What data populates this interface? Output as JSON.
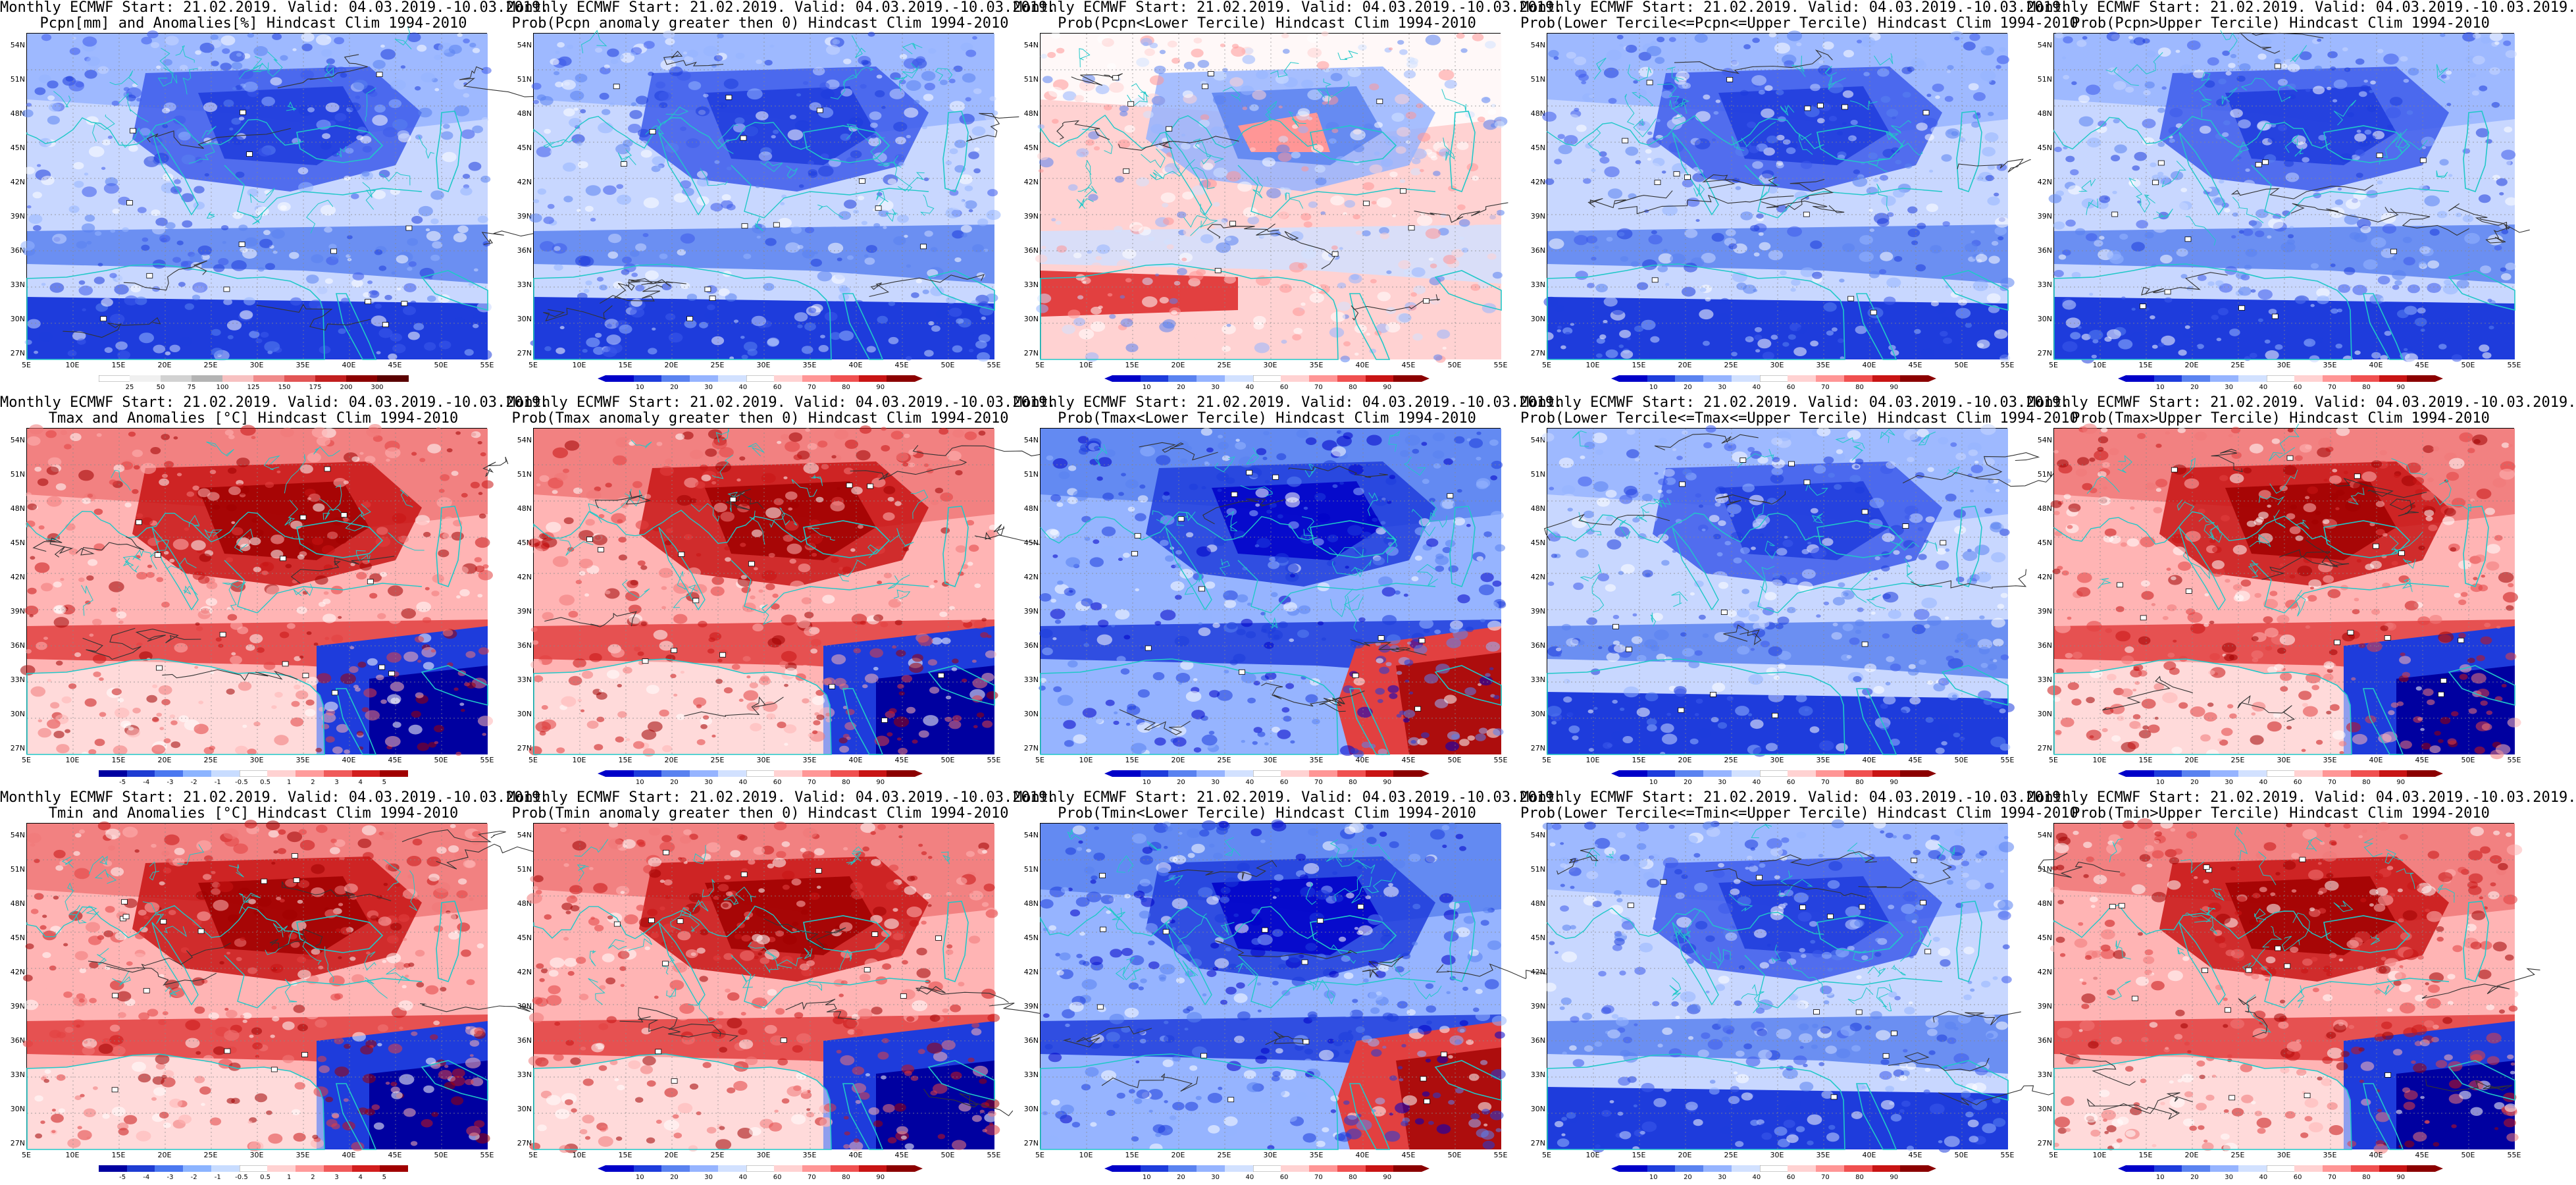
{
  "rows": [
    {
      "map_type": "precip",
      "legend_colors": [
        "#ffffff",
        "#f0f0f0",
        "#d2d2d2",
        "#b4b4b4",
        "#f7c1c1",
        "#f08a8a",
        "#e25555",
        "#c21f1f",
        "#8b0000",
        "#5a0000"
      ],
      "legend_labels": [
        "25",
        "50",
        "75",
        "100",
        "125",
        "150",
        "175",
        "200",
        "300"
      ],
      "panels": [
        {
          "title1": "Monthly ECMWF Start: 21.02.2019. Valid: 04.03.2019.-10.03.2019.",
          "title2": "Pcpn[mm] and Anomalies[%] Hindcast Clim 1994-2010",
          "scheme": "blue"
        },
        {
          "title1": "Monthly ECMWF Start: 21.02.2019. Valid: 04.03.2019.-10.03.2019.",
          "title2": "Prob(Pcpn anomaly greater then 0) Hindcast Clim 1994-2010",
          "scheme": "blue"
        },
        {
          "title1": "Monthly ECMWF Start: 21.02.2019. Valid: 04.03.2019.-10.03.2019.",
          "title2": "Prob(Pcpn<Lower Tercile) Hindcast Clim 1994-2010",
          "scheme": "mixed"
        },
        {
          "title1": "Monthly ECMWF Start: 21.02.2019. Valid: 04.03.2019.-10.03.2019.",
          "title2": "Prob(Lower Tercile<=Pcpn<=Upper Tercile) Hindcast Clim 1994-2010",
          "scheme": "blue"
        },
        {
          "title1": "Monthly ECMWF Start: 21.02.2019. Valid: 04.03.2019.-10.03.2019.",
          "title2": "Prob(Pcpn>Upper Tercile) Hindcast Clim 1994-2010",
          "scheme": "blue"
        }
      ]
    },
    {
      "map_type": "tmax",
      "legend_colors": [
        "#0000a0",
        "#1e3cd2",
        "#4b78f0",
        "#8cb4ff",
        "#c8dcff",
        "#ffffff",
        "#ffd2d2",
        "#ff9b9b",
        "#f05a5a",
        "#d21e1e",
        "#a00000"
      ],
      "legend_labels": [
        "-5",
        "-4",
        "-3",
        "-2",
        "-1",
        "-0.5",
        "0.5",
        "1",
        "2",
        "3",
        "4",
        "5"
      ],
      "panels": [
        {
          "title1": "Monthly ECMWF Start: 21.02.2019. Valid: 04.03.2019.-10.03.2019.",
          "title2": "Tmax and Anomalies [°C] Hindcast Clim 1994-2010",
          "scheme": "red"
        },
        {
          "title1": "Monthly ECMWF Start: 21.02.2019. Valid: 04.03.2019.-10.03.2019.",
          "title2": "Prob(Tmax anomaly greater then 0) Hindcast Clim 1994-2010",
          "scheme": "red"
        },
        {
          "title1": "Monthly ECMWF Start: 21.02.2019. Valid: 04.03.2019.-10.03.2019.",
          "title2": "Prob(Tmax<Lower Tercile) Hindcast Clim 1994-2010",
          "scheme": "blue-se-red"
        },
        {
          "title1": "Monthly ECMWF Start: 21.02.2019. Valid: 04.03.2019.-10.03.2019.",
          "title2": "Prob(Lower Tercile<=Tmax<=Upper Tercile) Hindcast Clim 1994-2010",
          "scheme": "blue"
        },
        {
          "title1": "Monthly ECMWF Start: 21.02.2019. Valid: 04.03.2019.-10.03.2019.",
          "title2": "Prob(Tmax>Upper Tercile) Hindcast Clim 1994-2010",
          "scheme": "red"
        }
      ]
    },
    {
      "map_type": "tmin",
      "legend_colors": [
        "#0000a0",
        "#1e3cd2",
        "#4b78f0",
        "#8cb4ff",
        "#c8dcff",
        "#ffffff",
        "#ffd2d2",
        "#ff9b9b",
        "#f05a5a",
        "#d21e1e",
        "#a00000"
      ],
      "legend_labels": [
        "-5",
        "-4",
        "-3",
        "-2",
        "-1",
        "-0.5",
        "0.5",
        "1",
        "2",
        "3",
        "4",
        "5"
      ],
      "panels": [
        {
          "title1": "Monthly ECMWF Start: 21.02.2019. Valid: 04.03.2019.-10.03.2019.",
          "title2": "Tmin and Anomalies [°C] Hindcast Clim 1994-2010",
          "scheme": "red"
        },
        {
          "title1": "Monthly ECMWF Start: 21.02.2019. Valid: 04.03.2019.-10.03.2019.",
          "title2": "Prob(Tmin anomaly greater then 0) Hindcast Clim 1994-2010",
          "scheme": "red"
        },
        {
          "title1": "Monthly ECMWF Start: 21.02.2019. Valid: 04.03.2019.-10.03.2019.",
          "title2": "Prob(Tmin<Lower Tercile) Hindcast Clim 1994-2010",
          "scheme": "blue-se-red"
        },
        {
          "title1": "Monthly ECMWF Start: 21.02.2019. Valid: 04.03.2019.-10.03.2019.",
          "title2": "Prob(Lower Tercile<=Tmin<=Upper Tercile) Hindcast Clim 1994-2010",
          "scheme": "blue"
        },
        {
          "title1": "Monthly ECMWF Start: 21.02.2019. Valid: 04.03.2019.-10.03.2019.",
          "title2": "Prob(Tmin>Upper Tercile) Hindcast Clim 1994-2010",
          "scheme": "red"
        }
      ]
    }
  ],
  "prob_legend": {
    "colors": [
      "#0000c8",
      "#1e3cdc",
      "#5a82f0",
      "#96b4ff",
      "#d2e1ff",
      "#ffffff",
      "#ffd2d2",
      "#ff9696",
      "#f05050",
      "#c81414",
      "#8b0000"
    ],
    "labels": [
      "10",
      "20",
      "30",
      "40",
      "60",
      "70",
      "80",
      "90"
    ]
  },
  "lat_labels": [
    "54N",
    "51N",
    "48N",
    "45N",
    "42N",
    "39N",
    "36N",
    "33N",
    "30N",
    "27N"
  ],
  "lon_labels": [
    "5E",
    "10E",
    "15E",
    "20E",
    "25E",
    "30E",
    "35E",
    "40E",
    "45E",
    "50E",
    "55E"
  ],
  "colors": {
    "coast": "#20c8c8",
    "contour": "#333333"
  }
}
